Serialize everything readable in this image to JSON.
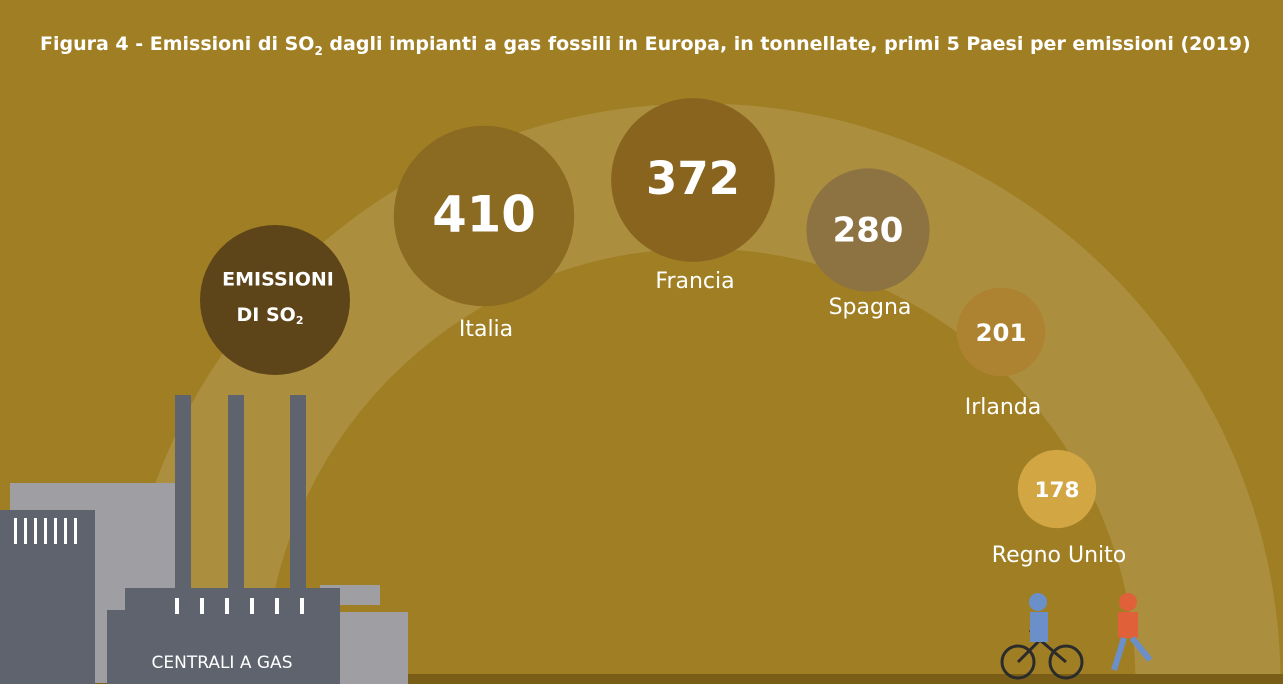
{
  "chart_data": {
    "type": "bubble",
    "title": {
      "before": "Figura 4 - Emissioni di SO",
      "sub": "2",
      "after": " dagli impianti a gas fossili in Europa, in tonnellate, primi 5 Paesi per emissioni (2019)"
    },
    "center_label": {
      "line1": "EMISSIONI",
      "line2": "DI SO",
      "sub": "2"
    },
    "factory_label": "CENTRALI A GAS",
    "categories": [
      "Italia",
      "Francia",
      "Spagna",
      "Irlanda",
      "Regno Unito"
    ],
    "values": [
      410,
      372,
      280,
      201,
      178
    ],
    "colors": [
      "#8b6a22",
      "#88641f",
      "#8d7341",
      "#ad8230",
      "#d3a644"
    ]
  }
}
